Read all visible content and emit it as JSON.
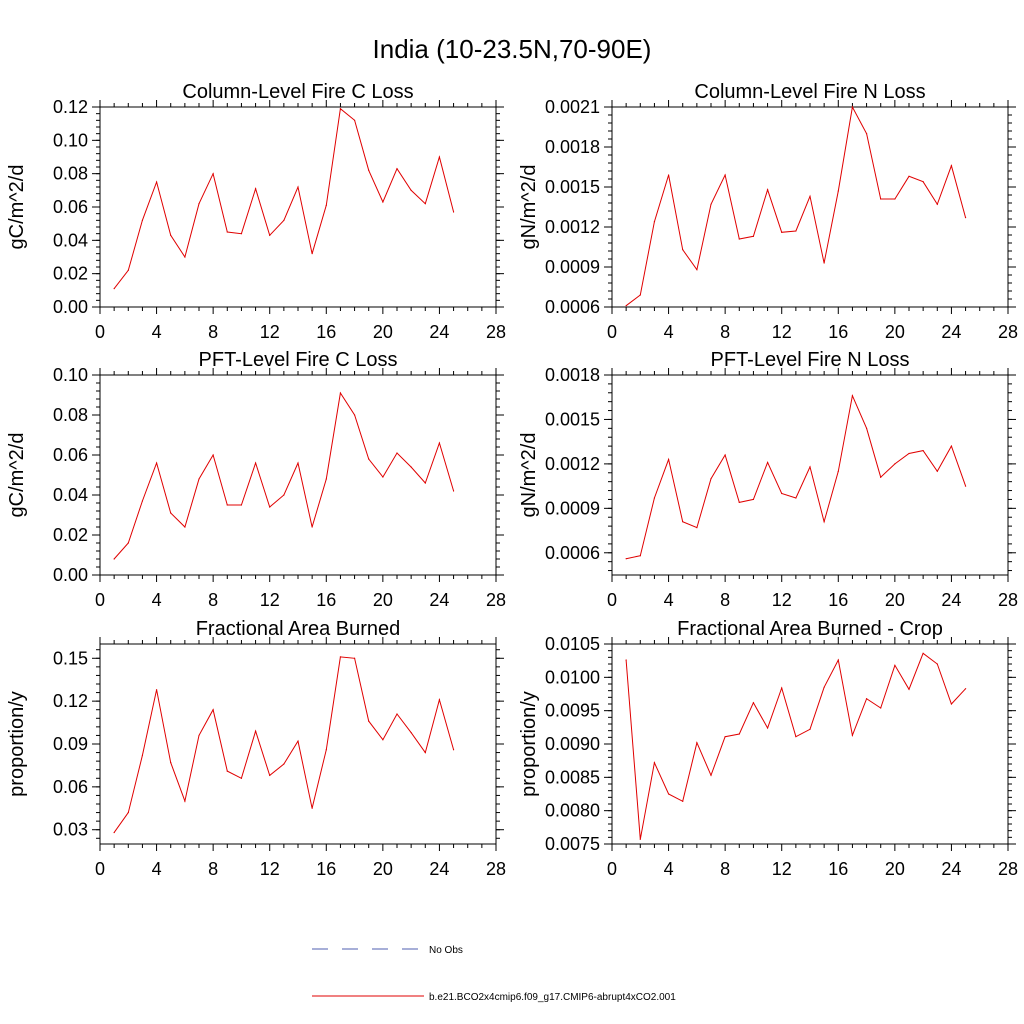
{
  "figure": {
    "title": "India (10-23.5N,70-90E)"
  },
  "legend": [
    {
      "label": "No Obs",
      "color": "#4f5fb0",
      "style": "dashed"
    },
    {
      "label": "b.e21.BCO2x4cmip6.f09_g17.CMIP6-abrupt4xCO2.001",
      "color": "#e00000",
      "style": "solid"
    }
  ],
  "chart_data": [
    {
      "type": "line",
      "title": "Column-Level Fire C Loss",
      "xlabel": "",
      "ylabel": "gC/m^2/d",
      "xlim": [
        0,
        28
      ],
      "ylim": [
        0,
        0.12
      ],
      "xticks": [
        0,
        4,
        8,
        12,
        16,
        20,
        24,
        28
      ],
      "yticks": [
        0,
        0.02,
        0.04,
        0.06,
        0.08,
        0.1,
        0.12
      ],
      "ytick_labels": [
        "0.00",
        "0.02",
        "0.04",
        "0.06",
        "0.08",
        "0.10",
        "0.12"
      ],
      "series": [
        {
          "name": "b.e21.BCO2x4cmip6.f09_g17.CMIP6-abrupt4xCO2.001",
          "color": "#e00000",
          "x": [
            1,
            2,
            3,
            4,
            5,
            6,
            7,
            8,
            9,
            10,
            11,
            12,
            13,
            14,
            15,
            16,
            17,
            18,
            19,
            20,
            21,
            22,
            23,
            24,
            25
          ],
          "values": [
            0.011,
            0.022,
            0.052,
            0.075,
            0.043,
            0.03,
            0.062,
            0.08,
            0.045,
            0.044,
            0.071,
            0.043,
            0.052,
            0.072,
            0.032,
            0.061,
            0.119,
            0.112,
            0.082,
            0.063,
            0.083,
            0.07,
            0.062,
            0.09,
            0.057
          ]
        }
      ]
    },
    {
      "type": "line",
      "title": "Column-Level Fire N Loss",
      "xlabel": "",
      "ylabel": "gN/m^2/d",
      "xlim": [
        0,
        28
      ],
      "ylim": [
        0.0006,
        0.0021
      ],
      "xticks": [
        0,
        4,
        8,
        12,
        16,
        20,
        24,
        28
      ],
      "yticks": [
        0.0006,
        0.0009,
        0.0012,
        0.0015,
        0.0018,
        0.0021
      ],
      "ytick_labels": [
        "0.0006",
        "0.0009",
        "0.0012",
        "0.0015",
        "0.0018",
        "0.0021"
      ],
      "series": [
        {
          "name": "b.e21.BCO2x4cmip6.f09_g17.CMIP6-abrupt4xCO2.001",
          "color": "#e00000",
          "x": [
            1,
            2,
            3,
            4,
            5,
            6,
            7,
            8,
            9,
            10,
            11,
            12,
            13,
            14,
            15,
            16,
            17,
            18,
            19,
            20,
            21,
            22,
            23,
            24,
            25
          ],
          "values": [
            0.00061,
            0.00069,
            0.00124,
            0.00159,
            0.00103,
            0.00088,
            0.00137,
            0.00159,
            0.00111,
            0.00113,
            0.00148,
            0.00116,
            0.00117,
            0.00143,
            0.00093,
            0.00147,
            0.0021,
            0.0019,
            0.00141,
            0.00141,
            0.00158,
            0.00154,
            0.00137,
            0.00166,
            0.00127
          ]
        }
      ]
    },
    {
      "type": "line",
      "title": "PFT-Level Fire C Loss",
      "xlabel": "",
      "ylabel": "gC/m^2/d",
      "xlim": [
        0,
        28
      ],
      "ylim": [
        0,
        0.1
      ],
      "xticks": [
        0,
        4,
        8,
        12,
        16,
        20,
        24,
        28
      ],
      "yticks": [
        0,
        0.02,
        0.04,
        0.06,
        0.08,
        0.1
      ],
      "ytick_labels": [
        "0.00",
        "0.02",
        "0.04",
        "0.06",
        "0.08",
        "0.10"
      ],
      "series": [
        {
          "name": "b.e21.BCO2x4cmip6.f09_g17.CMIP6-abrupt4xCO2.001",
          "color": "#e00000",
          "x": [
            1,
            2,
            3,
            4,
            5,
            6,
            7,
            8,
            9,
            10,
            11,
            12,
            13,
            14,
            15,
            16,
            17,
            18,
            19,
            20,
            21,
            22,
            23,
            24,
            25
          ],
          "values": [
            0.008,
            0.016,
            0.037,
            0.056,
            0.031,
            0.024,
            0.048,
            0.06,
            0.035,
            0.035,
            0.056,
            0.034,
            0.04,
            0.056,
            0.024,
            0.048,
            0.091,
            0.08,
            0.058,
            0.049,
            0.061,
            0.054,
            0.046,
            0.066,
            0.042
          ]
        }
      ]
    },
    {
      "type": "line",
      "title": "PFT-Level Fire N Loss",
      "xlabel": "",
      "ylabel": "gN/m^2/d",
      "xlim": [
        0,
        28
      ],
      "ylim": [
        0.00045,
        0.0018
      ],
      "xticks": [
        0,
        4,
        8,
        12,
        16,
        20,
        24,
        28
      ],
      "yticks": [
        0.0006,
        0.0009,
        0.0012,
        0.0015,
        0.0018
      ],
      "ytick_labels": [
        "0.0006",
        "0.0009",
        "0.0012",
        "0.0015",
        "0.0018"
      ],
      "series": [
        {
          "name": "b.e21.BCO2x4cmip6.f09_g17.CMIP6-abrupt4xCO2.001",
          "color": "#e00000",
          "x": [
            1,
            2,
            3,
            4,
            5,
            6,
            7,
            8,
            9,
            10,
            11,
            12,
            13,
            14,
            15,
            16,
            17,
            18,
            19,
            20,
            21,
            22,
            23,
            24,
            25
          ],
          "values": [
            0.00056,
            0.00058,
            0.00097,
            0.00123,
            0.00081,
            0.00077,
            0.0011,
            0.00126,
            0.00094,
            0.00096,
            0.00121,
            0.001,
            0.00097,
            0.00118,
            0.00081,
            0.00115,
            0.00166,
            0.00144,
            0.00111,
            0.0012,
            0.00127,
            0.00129,
            0.00115,
            0.00132,
            0.00105
          ]
        }
      ]
    },
    {
      "type": "line",
      "title": "Fractional Area Burned",
      "xlabel": "",
      "ylabel": "proportion/y",
      "xlim": [
        0,
        28
      ],
      "ylim": [
        0.02,
        0.16
      ],
      "xticks": [
        0,
        4,
        8,
        12,
        16,
        20,
        24,
        28
      ],
      "yticks": [
        0.03,
        0.06,
        0.09,
        0.12,
        0.15
      ],
      "ytick_labels": [
        "0.03",
        "0.06",
        "0.09",
        "0.12",
        "0.15"
      ],
      "series": [
        {
          "name": "b.e21.BCO2x4cmip6.f09_g17.CMIP6-abrupt4xCO2.001",
          "color": "#e00000",
          "x": [
            1,
            2,
            3,
            4,
            5,
            6,
            7,
            8,
            9,
            10,
            11,
            12,
            13,
            14,
            15,
            16,
            17,
            18,
            19,
            20,
            21,
            22,
            23,
            24,
            25
          ],
          "values": [
            0.028,
            0.042,
            0.082,
            0.128,
            0.077,
            0.05,
            0.096,
            0.114,
            0.071,
            0.066,
            0.099,
            0.068,
            0.076,
            0.092,
            0.045,
            0.086,
            0.151,
            0.15,
            0.106,
            0.093,
            0.111,
            0.098,
            0.084,
            0.121,
            0.086
          ]
        }
      ]
    },
    {
      "type": "line",
      "title": "Fractional Area Burned - Crop",
      "xlabel": "",
      "ylabel": "proportion/y",
      "xlim": [
        0,
        28
      ],
      "ylim": [
        0.0075,
        0.0105
      ],
      "xticks": [
        0,
        4,
        8,
        12,
        16,
        20,
        24,
        28
      ],
      "yticks": [
        0.0075,
        0.008,
        0.0085,
        0.009,
        0.0095,
        0.01,
        0.0105
      ],
      "ytick_labels": [
        "0.0075",
        "0.0080",
        "0.0085",
        "0.0090",
        "0.0095",
        "0.0100",
        "0.0105"
      ],
      "series": [
        {
          "name": "b.e21.BCO2x4cmip6.f09_g17.CMIP6-abrupt4xCO2.001",
          "color": "#e00000",
          "x": [
            1,
            2,
            3,
            4,
            5,
            6,
            7,
            8,
            9,
            10,
            11,
            12,
            13,
            14,
            15,
            16,
            17,
            18,
            19,
            20,
            21,
            22,
            23,
            24,
            25
          ],
          "values": [
            0.01026,
            0.00757,
            0.00872,
            0.00825,
            0.00814,
            0.00902,
            0.00853,
            0.00911,
            0.00915,
            0.00962,
            0.00924,
            0.00984,
            0.00911,
            0.00922,
            0.00985,
            0.01026,
            0.00913,
            0.00968,
            0.00954,
            0.01018,
            0.00982,
            0.01036,
            0.0102,
            0.0096,
            0.00983
          ]
        }
      ]
    }
  ]
}
